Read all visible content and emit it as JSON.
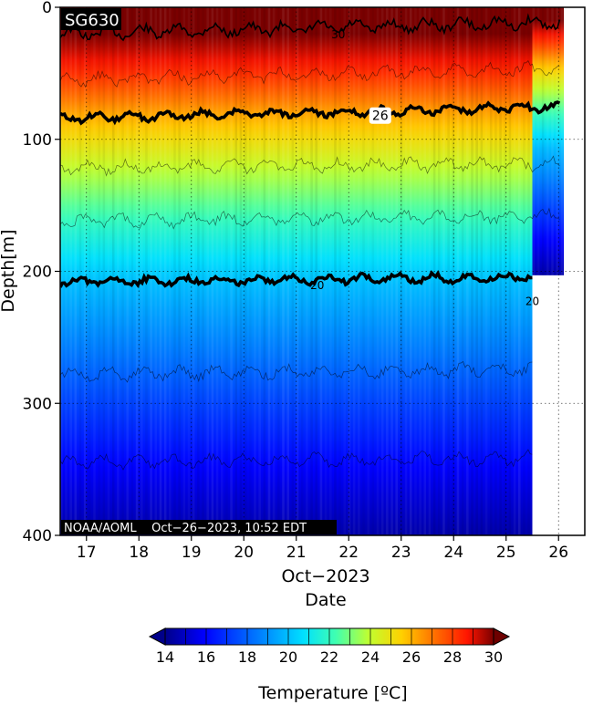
{
  "chart_data": {
    "type": "heatmap",
    "title_badge": "SG630",
    "xlabel_line1": "Oct−2023",
    "xlabel_line2": "Date",
    "ylabel": "Depth[m]",
    "footer": "NOAA/AOML    Oct−26−2023, 10:52 EDT",
    "colorbar_label": "Temperature [ºC]",
    "xlim": [
      16.5,
      26.5
    ],
    "ylim": [
      400,
      0
    ],
    "y_ticks": [
      0,
      100,
      200,
      300,
      400
    ],
    "x_ticks": [
      17,
      18,
      19,
      20,
      21,
      22,
      23,
      24,
      25,
      26
    ],
    "colorbar_ticks": [
      14,
      16,
      18,
      20,
      22,
      24,
      26,
      28,
      30
    ],
    "colorbar_range": [
      14,
      30
    ],
    "grid": true,
    "data_extent": {
      "full_depth_until_day": 25.5,
      "shallow_until_day": 26.1,
      "shallow_max_depth": 203
    },
    "contour_labels": [
      "30",
      "26",
      "20",
      "20"
    ],
    "isotherms": [
      {
        "temp": 30,
        "depth": 20,
        "bold": false
      },
      {
        "temp": 28,
        "depth": 55,
        "bold": false
      },
      {
        "temp": 26,
        "depth": 84,
        "bold": true
      },
      {
        "temp": 24,
        "depth": 122,
        "bold": false
      },
      {
        "temp": 22,
        "depth": 162,
        "bold": false
      },
      {
        "temp": 20,
        "depth": 208,
        "bold": true
      },
      {
        "temp": 18,
        "depth": 278,
        "bold": false
      },
      {
        "temp": 16,
        "depth": 345,
        "bold": false
      }
    ]
  }
}
